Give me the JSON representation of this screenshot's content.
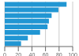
{
  "chart_data": {
    "type": "bar",
    "orientation": "horizontal",
    "categories": [
      null,
      null,
      null,
      null,
      null,
      null,
      null,
      null
    ],
    "values": [
      91,
      79,
      69,
      65,
      63,
      52,
      34,
      24
    ],
    "color": "#2196d3",
    "xlim": [
      0,
      100
    ],
    "xticks": [
      0,
      20,
      40,
      60,
      80,
      100
    ],
    "grid": true,
    "tick_labels": "x"
  }
}
